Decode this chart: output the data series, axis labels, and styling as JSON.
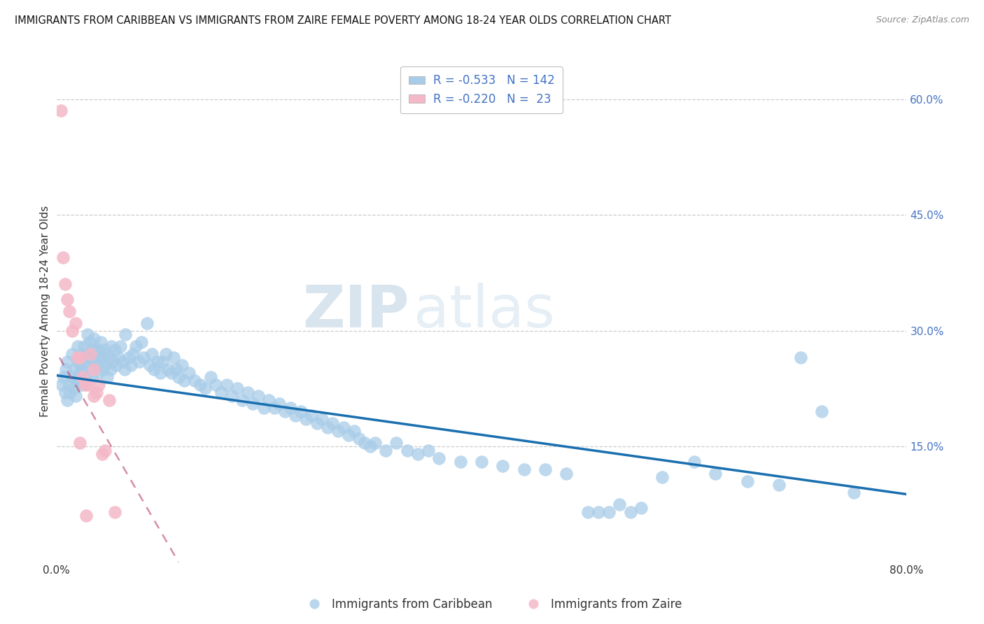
{
  "title": "IMMIGRANTS FROM CARIBBEAN VS IMMIGRANTS FROM ZAIRE FEMALE POVERTY AMONG 18-24 YEAR OLDS CORRELATION CHART",
  "source": "Source: ZipAtlas.com",
  "ylabel": "Female Poverty Among 18-24 Year Olds",
  "xlim": [
    0.0,
    0.8
  ],
  "ylim": [
    0.0,
    0.65
  ],
  "ytick_labels_right": [
    "60.0%",
    "45.0%",
    "30.0%",
    "15.0%"
  ],
  "ytick_positions_right": [
    0.6,
    0.45,
    0.3,
    0.15
  ],
  "caribbean_color": "#a8cce8",
  "caribbean_color_line": "#1a6faf",
  "zaire_color": "#f4b8c8",
  "zaire_color_line": "#c05070",
  "caribbean_R": -0.533,
  "caribbean_N": 142,
  "zaire_R": -0.22,
  "zaire_N": 23,
  "car_line_y0": 0.242,
  "car_line_y1": 0.088,
  "zai_line_x0": 0.003,
  "zai_line_y0": 0.265,
  "zai_line_x1": 0.115,
  "zai_line_y1": 0.0,
  "caribbean_x": [
    0.005,
    0.007,
    0.008,
    0.009,
    0.01,
    0.01,
    0.012,
    0.013,
    0.015,
    0.015,
    0.016,
    0.017,
    0.018,
    0.019,
    0.02,
    0.02,
    0.021,
    0.022,
    0.023,
    0.024,
    0.025,
    0.025,
    0.026,
    0.027,
    0.028,
    0.029,
    0.03,
    0.03,
    0.031,
    0.032,
    0.033,
    0.034,
    0.035,
    0.035,
    0.036,
    0.037,
    0.038,
    0.039,
    0.04,
    0.04,
    0.042,
    0.043,
    0.044,
    0.045,
    0.046,
    0.047,
    0.048,
    0.05,
    0.051,
    0.052,
    0.053,
    0.055,
    0.056,
    0.058,
    0.06,
    0.062,
    0.064,
    0.065,
    0.068,
    0.07,
    0.072,
    0.075,
    0.078,
    0.08,
    0.082,
    0.085,
    0.088,
    0.09,
    0.092,
    0.095,
    0.098,
    0.1,
    0.103,
    0.105,
    0.108,
    0.11,
    0.113,
    0.115,
    0.118,
    0.12,
    0.125,
    0.13,
    0.135,
    0.14,
    0.145,
    0.15,
    0.155,
    0.16,
    0.165,
    0.17,
    0.175,
    0.18,
    0.185,
    0.19,
    0.195,
    0.2,
    0.205,
    0.21,
    0.215,
    0.22,
    0.225,
    0.23,
    0.235,
    0.24,
    0.245,
    0.25,
    0.255,
    0.26,
    0.265,
    0.27,
    0.275,
    0.28,
    0.285,
    0.29,
    0.295,
    0.3,
    0.31,
    0.32,
    0.33,
    0.34,
    0.35,
    0.36,
    0.38,
    0.4,
    0.42,
    0.44,
    0.46,
    0.48,
    0.5,
    0.51,
    0.52,
    0.53,
    0.54,
    0.55,
    0.57,
    0.6,
    0.62,
    0.65,
    0.68,
    0.7,
    0.72,
    0.75
  ],
  "caribbean_y": [
    0.23,
    0.24,
    0.22,
    0.25,
    0.21,
    0.26,
    0.23,
    0.22,
    0.27,
    0.24,
    0.225,
    0.25,
    0.215,
    0.235,
    0.28,
    0.26,
    0.235,
    0.245,
    0.255,
    0.23,
    0.27,
    0.25,
    0.28,
    0.26,
    0.24,
    0.295,
    0.27,
    0.255,
    0.285,
    0.265,
    0.24,
    0.275,
    0.29,
    0.26,
    0.275,
    0.255,
    0.265,
    0.245,
    0.275,
    0.26,
    0.285,
    0.265,
    0.25,
    0.275,
    0.255,
    0.27,
    0.24,
    0.265,
    0.25,
    0.28,
    0.26,
    0.275,
    0.255,
    0.265,
    0.28,
    0.26,
    0.25,
    0.295,
    0.265,
    0.255,
    0.27,
    0.28,
    0.26,
    0.285,
    0.265,
    0.31,
    0.255,
    0.27,
    0.25,
    0.26,
    0.245,
    0.26,
    0.27,
    0.25,
    0.245,
    0.265,
    0.25,
    0.24,
    0.255,
    0.235,
    0.245,
    0.235,
    0.23,
    0.225,
    0.24,
    0.23,
    0.22,
    0.23,
    0.215,
    0.225,
    0.21,
    0.22,
    0.205,
    0.215,
    0.2,
    0.21,
    0.2,
    0.205,
    0.195,
    0.2,
    0.19,
    0.195,
    0.185,
    0.19,
    0.18,
    0.185,
    0.175,
    0.18,
    0.17,
    0.175,
    0.165,
    0.17,
    0.16,
    0.155,
    0.15,
    0.155,
    0.145,
    0.155,
    0.145,
    0.14,
    0.145,
    0.135,
    0.13,
    0.13,
    0.125,
    0.12,
    0.12,
    0.115,
    0.065,
    0.065,
    0.065,
    0.075,
    0.065,
    0.07,
    0.11,
    0.13,
    0.115,
    0.105,
    0.1,
    0.265,
    0.195,
    0.09
  ],
  "zaire_x": [
    0.004,
    0.006,
    0.008,
    0.01,
    0.012,
    0.015,
    0.018,
    0.02,
    0.022,
    0.025,
    0.027,
    0.03,
    0.032,
    0.035,
    0.038,
    0.04,
    0.043,
    0.046,
    0.05,
    0.055,
    0.022,
    0.028,
    0.035
  ],
  "zaire_y": [
    0.585,
    0.395,
    0.36,
    0.34,
    0.325,
    0.3,
    0.31,
    0.265,
    0.265,
    0.24,
    0.23,
    0.23,
    0.27,
    0.25,
    0.22,
    0.23,
    0.14,
    0.145,
    0.21,
    0.065,
    0.155,
    0.06,
    0.215
  ]
}
